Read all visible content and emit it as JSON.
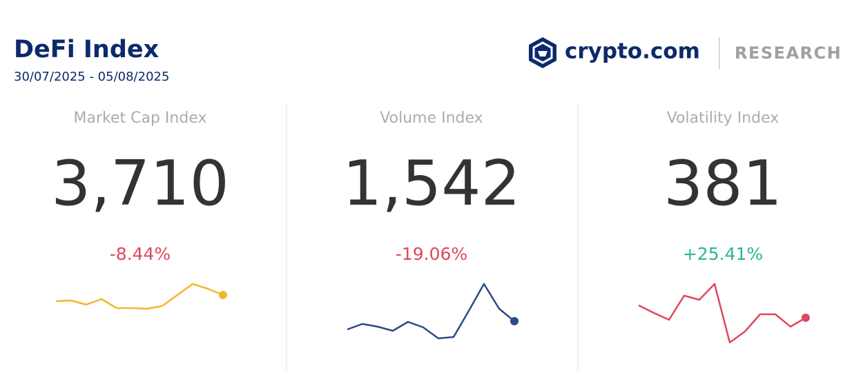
{
  "header": {
    "title": "DeFi Index",
    "date_range": "30/07/2025 - 05/08/2025",
    "brand": "crypto.com",
    "section": "RESEARCH"
  },
  "panels": [
    {
      "title": "Market Cap Index",
      "value": "3,710",
      "change": "-8.44%",
      "change_color": "#e0475c",
      "sparkline": {
        "color": "#f7b52c",
        "values": [
          63,
          64,
          58,
          66,
          53,
          53,
          52,
          56,
          72,
          88,
          81,
          72
        ]
      }
    },
    {
      "title": "Volume Index",
      "value": "1,542",
      "change": "-19.06%",
      "change_color": "#e0475c",
      "sparkline": {
        "color": "#2a4a86",
        "values": [
          22,
          30,
          26,
          20,
          33,
          25,
          9,
          11,
          49,
          88,
          52,
          34
        ]
      }
    },
    {
      "title": "Volatility Index",
      "value": "381",
      "change": "+25.41%",
      "change_color": "#2bb59a",
      "sparkline": {
        "color": "#e0475c",
        "values": [
          57,
          46,
          36,
          71,
          65,
          88,
          3,
          19,
          44,
          44,
          26,
          39
        ]
      }
    }
  ]
}
